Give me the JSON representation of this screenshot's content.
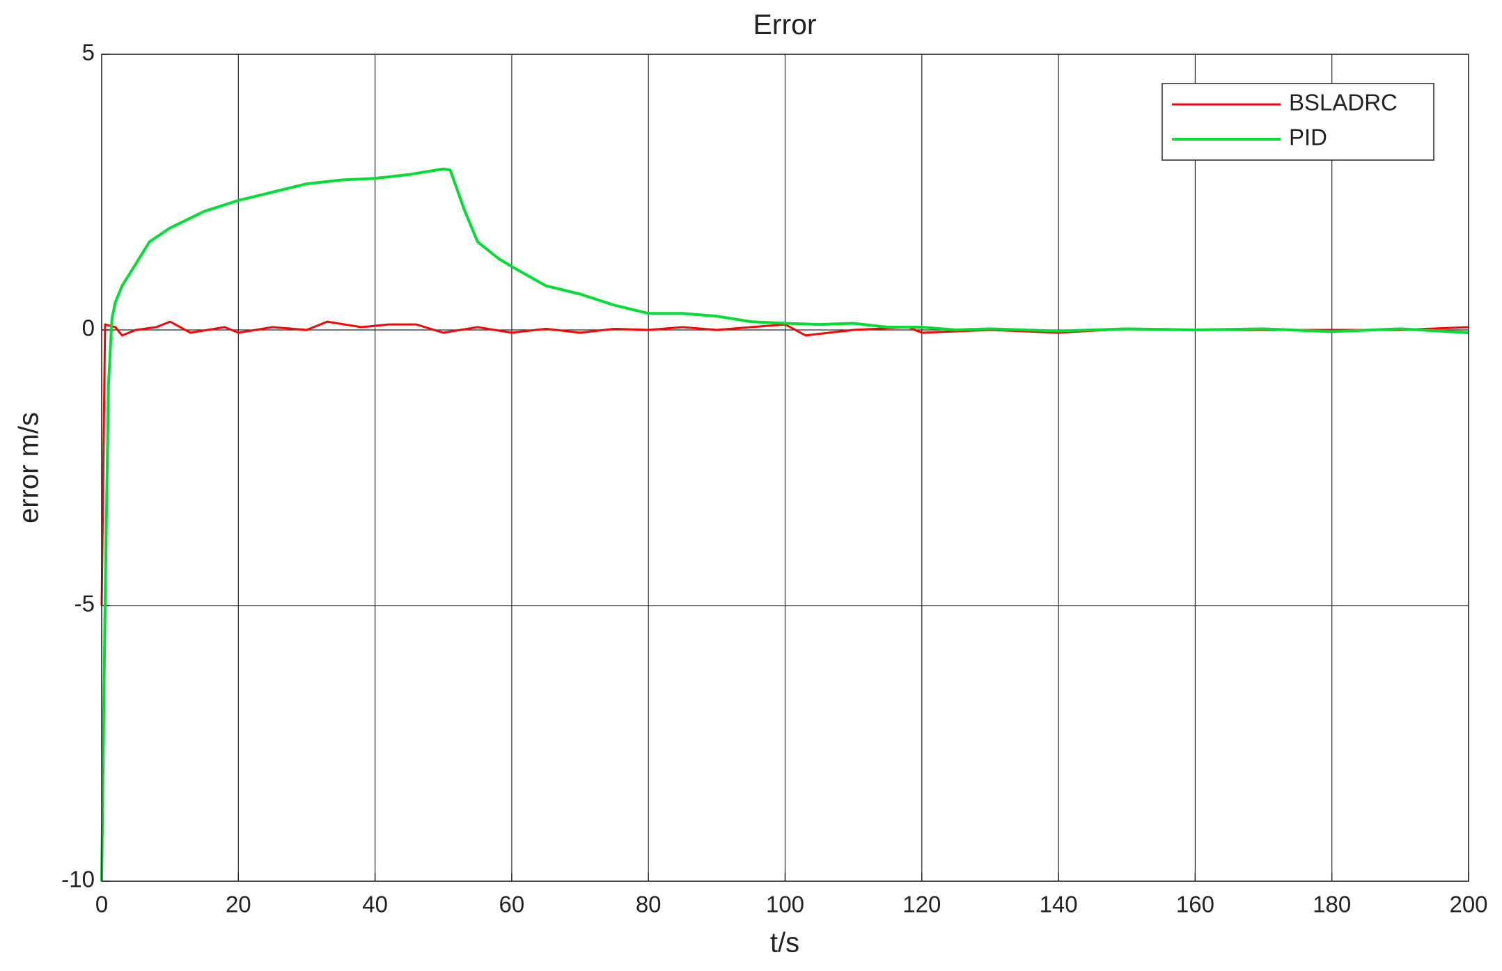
{
  "chart_data": {
    "type": "line",
    "title": "Error",
    "x_label": "t/s",
    "y_label": "error m/s",
    "xlim": [
      0,
      200
    ],
    "ylim": [
      -10,
      5
    ],
    "xticks": [
      0,
      20,
      40,
      60,
      80,
      100,
      120,
      140,
      160,
      180,
      200
    ],
    "yticks": [
      -10,
      -5,
      0,
      5
    ],
    "grid": true,
    "legend": "upper right",
    "series": [
      {
        "name": "BSLADRC",
        "color": "#ff0000",
        "x": [
          0,
          0.5,
          2,
          3,
          5,
          8,
          10,
          13,
          18,
          20,
          25,
          30,
          33,
          38,
          42,
          46,
          50,
          55,
          60,
          65,
          70,
          75,
          80,
          85,
          90,
          95,
          100,
          103,
          110,
          118,
          120,
          130,
          140,
          150,
          160,
          170,
          180,
          190,
          200
        ],
        "values": [
          -5,
          0.1,
          0.05,
          -0.1,
          0,
          0.05,
          0.15,
          -0.05,
          0.05,
          -0.05,
          0.05,
          0,
          0.15,
          0.05,
          0.1,
          0.1,
          -0.05,
          0.05,
          -0.05,
          0.02,
          -0.05,
          0.02,
          0,
          0.05,
          0,
          0.05,
          0.1,
          -0.1,
          0,
          0.05,
          -0.05,
          0,
          -0.05,
          0.02,
          0,
          0,
          0,
          0,
          0.05
        ]
      },
      {
        "name": "PID",
        "color": "#00dd33",
        "x": [
          0,
          0.5,
          1,
          1.5,
          2,
          3,
          5,
          7,
          10,
          15,
          20,
          25,
          30,
          35,
          40,
          45,
          50,
          51,
          53,
          55,
          58,
          60,
          65,
          70,
          75,
          80,
          85,
          90,
          95,
          100,
          105,
          110,
          115,
          120,
          125,
          130,
          140,
          150,
          160,
          170,
          180,
          190,
          200
        ],
        "values": [
          -10,
          -5,
          -1,
          0.2,
          0.5,
          0.8,
          1.2,
          1.6,
          1.85,
          2.15,
          2.35,
          2.5,
          2.65,
          2.72,
          2.75,
          2.82,
          2.92,
          2.9,
          2.2,
          1.6,
          1.3,
          1.15,
          0.8,
          0.65,
          0.45,
          0.3,
          0.3,
          0.25,
          0.15,
          0.12,
          0.1,
          0.12,
          0.05,
          0.05,
          0,
          0.02,
          -0.02,
          0.02,
          0,
          0.02,
          -0.03,
          0.02,
          -0.05
        ]
      }
    ]
  }
}
